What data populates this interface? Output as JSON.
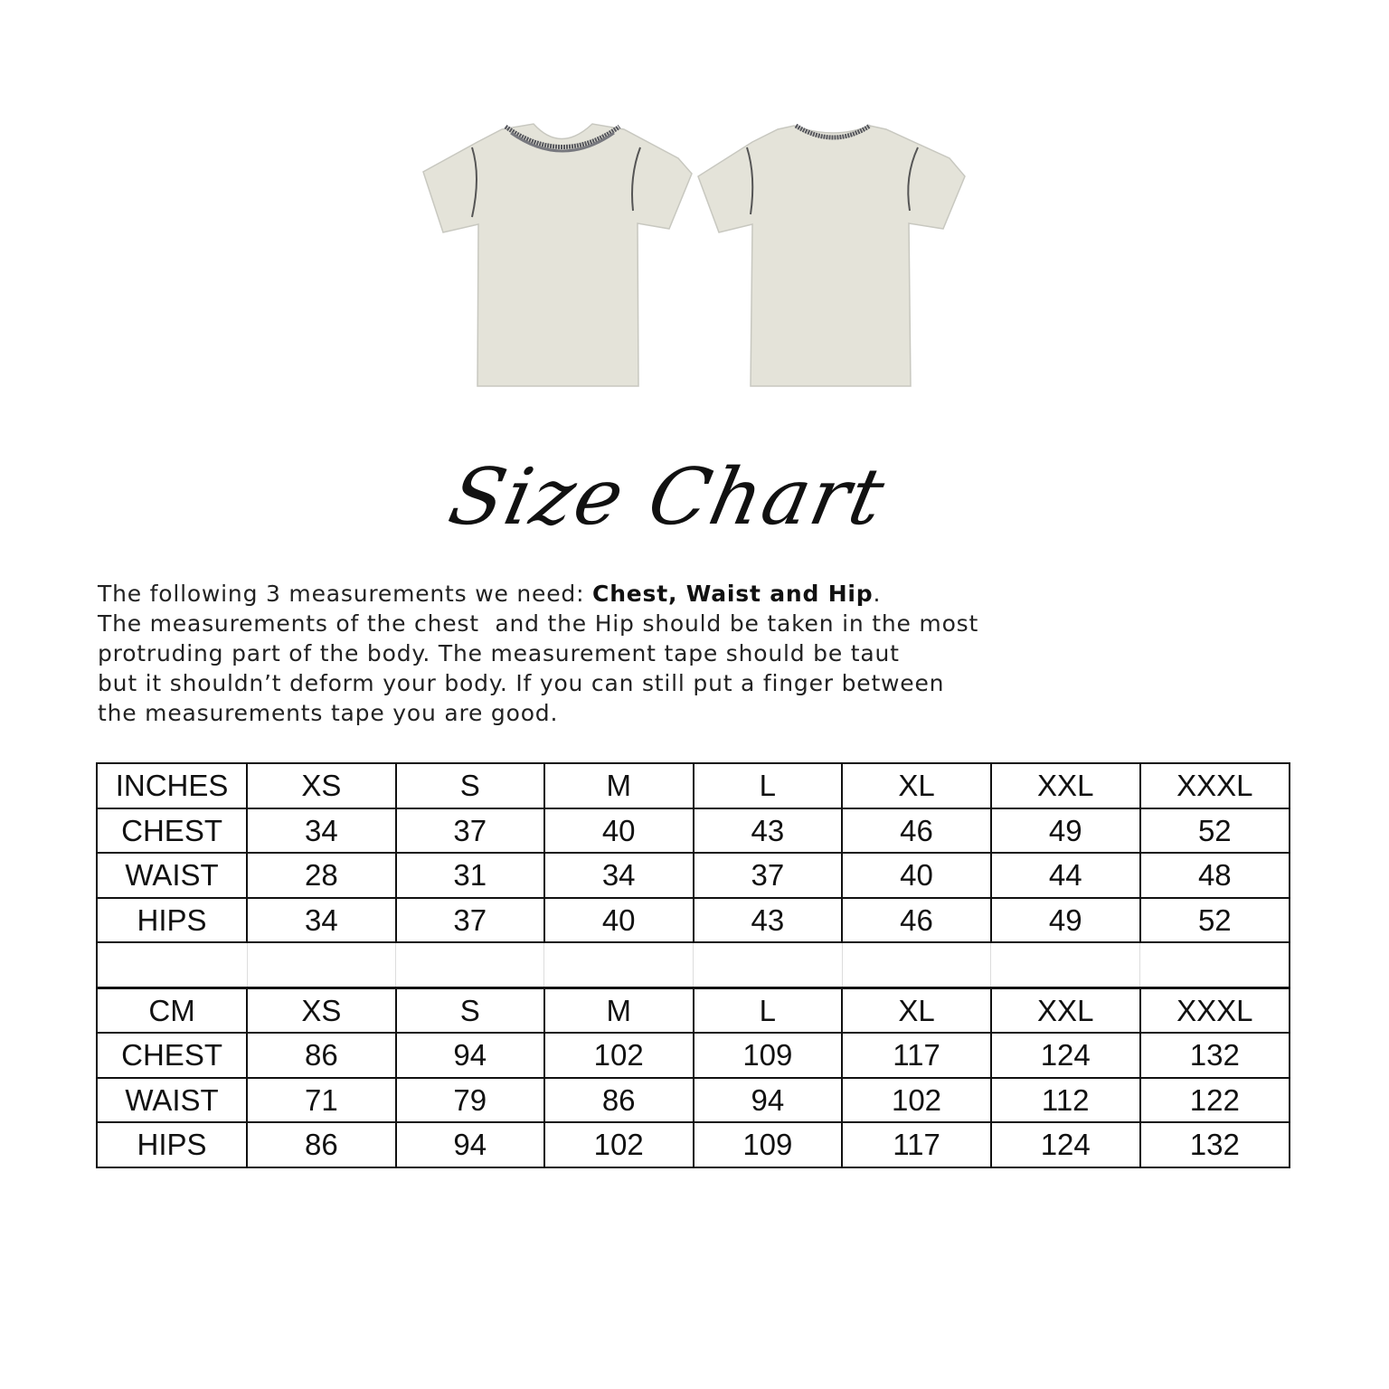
{
  "illustration": {
    "views": [
      "front",
      "back"
    ],
    "shirt_color": "#e4e3d9",
    "collar_color": "#55565c"
  },
  "title": "Size Chart",
  "intro": {
    "line1_prefix": "The following 3 measurements we need: ",
    "line1_bold": "Chest, Waist and Hip",
    "line1_suffix": ".",
    "line2": "The measurements of the chest  and the Hip should be taken in the most",
    "line3": "protruding part of the body. The measurement tape should be taut",
    "line4": "but it shouldn’t deform your body. If you can still put a finger between",
    "line5": "the measurements tape you are good."
  },
  "tables": [
    {
      "header": [
        "INCHES",
        "XS",
        "S",
        "M",
        "L",
        "XL",
        "XXL",
        "XXXL"
      ],
      "rows": [
        [
          "CHEST",
          "34",
          "37",
          "40",
          "43",
          "46",
          "49",
          "52"
        ],
        [
          "WAIST",
          "28",
          "31",
          "34",
          "37",
          "40",
          "44",
          "48"
        ],
        [
          "HIPS",
          "34",
          "37",
          "40",
          "43",
          "46",
          "49",
          "52"
        ]
      ]
    },
    {
      "header": [
        "CM",
        "XS",
        "S",
        "M",
        "L",
        "XL",
        "XXL",
        "XXXL"
      ],
      "rows": [
        [
          "CHEST",
          "86",
          "94",
          "102",
          "109",
          "117",
          "124",
          "132"
        ],
        [
          "WAIST",
          "71",
          "79",
          "86",
          "94",
          "102",
          "112",
          "122"
        ],
        [
          "HIPS",
          "86",
          "94",
          "102",
          "109",
          "117",
          "124",
          "132"
        ]
      ]
    }
  ]
}
